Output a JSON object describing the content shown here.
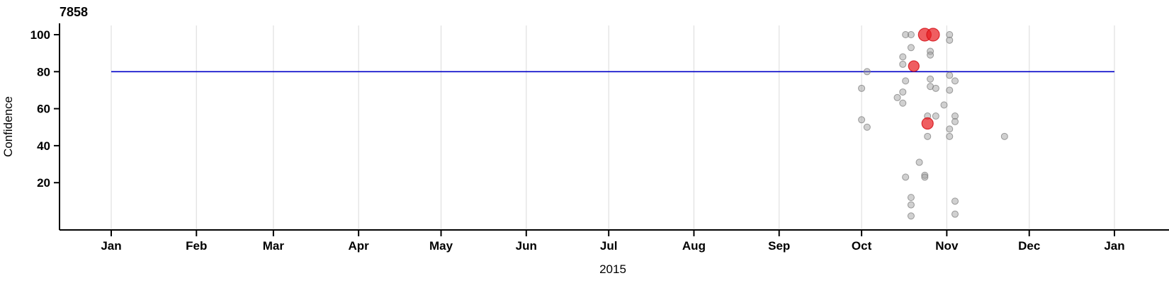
{
  "chart": {
    "title": "7858",
    "ylabel": "Confidence",
    "xlabel": "2015"
  },
  "colors": {
    "reference_line": "#0000C8",
    "gridline": "#E0E0E0",
    "axis": "#000000",
    "gray_point": "#969696",
    "gray_point_stroke": "#7D7D7D",
    "red_point": "#E8191E",
    "red_point_stroke": "#D40F16"
  },
  "chart_data": {
    "type": "scatter",
    "title": "7858",
    "xlabel": "2015",
    "ylabel": "Confidence",
    "x_axis": {
      "type": "date",
      "start": "2015-01-01",
      "end": "2016-01-01",
      "tick_labels": [
        "Jan",
        "Feb",
        "Mar",
        "Apr",
        "May",
        "Jun",
        "Jul",
        "Aug",
        "Sep",
        "Oct",
        "Nov",
        "Dec",
        "Jan"
      ],
      "year_label": "2015"
    },
    "y_axis": {
      "label": "Confidence",
      "ticks": [
        20,
        40,
        60,
        80,
        100
      ],
      "range": [
        -6,
        106
      ]
    },
    "grid": "vertical month gridlines",
    "legend": "none",
    "reference_line": {
      "y": 80,
      "color": "#0000C8",
      "x_start": "2015-01-01",
      "x_end": "2016-01-01"
    },
    "series": [
      {
        "name": "observations",
        "marker": "circle",
        "color": "#969696",
        "opacity": 0.45,
        "radius": 4.5,
        "points": [
          {
            "date": "2015-10-17",
            "confidence": 100
          },
          {
            "date": "2015-10-19",
            "confidence": 100
          },
          {
            "date": "2015-11-02",
            "confidence": 100
          },
          {
            "date": "2015-11-02",
            "confidence": 97
          },
          {
            "date": "2015-10-19",
            "confidence": 93
          },
          {
            "date": "2015-10-26",
            "confidence": 91
          },
          {
            "date": "2015-10-26",
            "confidence": 89
          },
          {
            "date": "2015-10-16",
            "confidence": 88
          },
          {
            "date": "2015-10-16",
            "confidence": 84
          },
          {
            "date": "2015-10-03",
            "confidence": 80
          },
          {
            "date": "2015-11-02",
            "confidence": 78
          },
          {
            "date": "2015-10-26",
            "confidence": 76
          },
          {
            "date": "2015-10-17",
            "confidence": 75
          },
          {
            "date": "2015-11-04",
            "confidence": 75
          },
          {
            "date": "2015-10-26",
            "confidence": 72
          },
          {
            "date": "2015-10-01",
            "confidence": 71
          },
          {
            "date": "2015-10-28",
            "confidence": 71
          },
          {
            "date": "2015-11-02",
            "confidence": 70
          },
          {
            "date": "2015-10-16",
            "confidence": 69
          },
          {
            "date": "2015-10-14",
            "confidence": 66
          },
          {
            "date": "2015-10-16",
            "confidence": 63
          },
          {
            "date": "2015-10-31",
            "confidence": 62
          },
          {
            "date": "2015-10-25",
            "confidence": 56
          },
          {
            "date": "2015-10-28",
            "confidence": 56
          },
          {
            "date": "2015-11-04",
            "confidence": 56
          },
          {
            "date": "2015-10-01",
            "confidence": 54
          },
          {
            "date": "2015-11-04",
            "confidence": 53
          },
          {
            "date": "2015-10-03",
            "confidence": 50
          },
          {
            "date": "2015-11-02",
            "confidence": 49
          },
          {
            "date": "2015-10-25",
            "confidence": 45
          },
          {
            "date": "2015-11-02",
            "confidence": 45
          },
          {
            "date": "2015-11-22",
            "confidence": 45
          },
          {
            "date": "2015-10-22",
            "confidence": 31
          },
          {
            "date": "2015-10-24",
            "confidence": 24
          },
          {
            "date": "2015-10-17",
            "confidence": 23
          },
          {
            "date": "2015-10-24",
            "confidence": 23
          },
          {
            "date": "2015-10-19",
            "confidence": 12
          },
          {
            "date": "2015-11-04",
            "confidence": 10
          },
          {
            "date": "2015-10-19",
            "confidence": 8
          },
          {
            "date": "2015-11-04",
            "confidence": 3
          },
          {
            "date": "2015-10-19",
            "confidence": 2
          }
        ]
      },
      {
        "name": "highlighted",
        "marker": "circle",
        "color": "#E8191E",
        "opacity": 0.7,
        "points": [
          {
            "date": "2015-10-24",
            "confidence": 100,
            "radius": 9
          },
          {
            "date": "2015-10-27",
            "confidence": 100,
            "radius": 9
          },
          {
            "date": "2015-10-20",
            "confidence": 83,
            "radius": 7.5
          },
          {
            "date": "2015-10-25",
            "confidence": 52,
            "radius": 8
          }
        ]
      }
    ]
  }
}
